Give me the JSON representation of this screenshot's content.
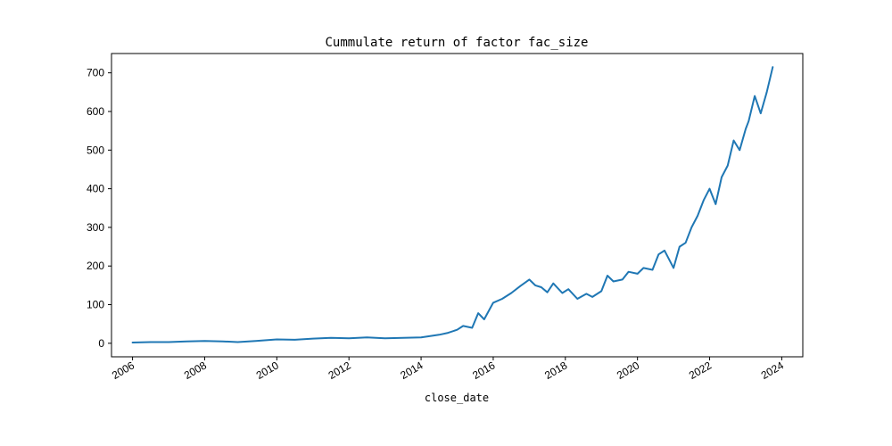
{
  "chart_data": {
    "type": "line",
    "title": "Cummulate return of factor fac_size",
    "xlabel": "close_date",
    "ylabel": "",
    "xlim": [
      "2005-06-01",
      "2024-08-01"
    ],
    "ylim": [
      -35,
      750
    ],
    "grid": false,
    "legend": "none",
    "x_ticks": [
      "2006",
      "2008",
      "2010",
      "2012",
      "2014",
      "2016",
      "2018",
      "2020",
      "2022",
      "2024"
    ],
    "y_ticks": [
      0,
      100,
      200,
      300,
      400,
      500,
      600,
      700
    ],
    "colors": {
      "series": "#1f77b4"
    },
    "series": [
      {
        "x": [
          "2006-01",
          "2006-07",
          "2007-01",
          "2007-07",
          "2008-01",
          "2008-07",
          "2008-12",
          "2009-06",
          "2010-01",
          "2010-07",
          "2011-01",
          "2011-07",
          "2012-01",
          "2012-07",
          "2013-01",
          "2013-07",
          "2014-01",
          "2014-07",
          "2014-10",
          "2015-01",
          "2015-03",
          "2015-06",
          "2015-08",
          "2015-10",
          "2016-01",
          "2016-04",
          "2016-07",
          "2016-10",
          "2017-01",
          "2017-03",
          "2017-05",
          "2017-07",
          "2017-09",
          "2017-12",
          "2018-02",
          "2018-05",
          "2018-08",
          "2018-10",
          "2019-01",
          "2019-03",
          "2019-05",
          "2019-08",
          "2019-10",
          "2020-01",
          "2020-03",
          "2020-06",
          "2020-08",
          "2020-10",
          "2021-01",
          "2021-03",
          "2021-05",
          "2021-07",
          "2021-09",
          "2021-11",
          "2022-01",
          "2022-03",
          "2022-05",
          "2022-07",
          "2022-09",
          "2022-11",
          "2023-01",
          "2023-02",
          "2023-04",
          "2023-06",
          "2023-08",
          "2023-10"
        ],
        "y": [
          2,
          3,
          3,
          5,
          6,
          5,
          3,
          6,
          10,
          9,
          12,
          14,
          13,
          15,
          13,
          14,
          15,
          22,
          27,
          35,
          45,
          40,
          78,
          62,
          105,
          115,
          130,
          148,
          165,
          150,
          145,
          132,
          155,
          130,
          140,
          115,
          128,
          120,
          135,
          175,
          160,
          165,
          185,
          180,
          195,
          190,
          230,
          240,
          195,
          250,
          260,
          300,
          330,
          370,
          400,
          360,
          430,
          460,
          525,
          500,
          555,
          575,
          640,
          595,
          650,
          715
        ]
      }
    ]
  }
}
